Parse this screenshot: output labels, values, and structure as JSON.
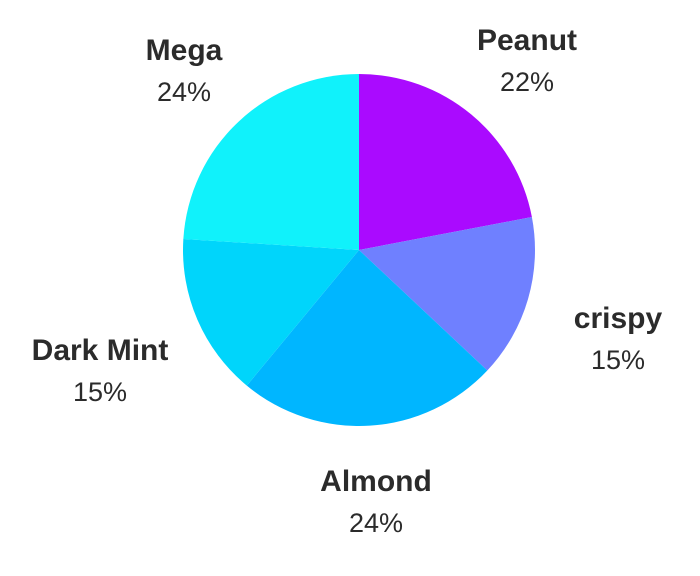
{
  "chart_data": {
    "type": "pie",
    "title": "",
    "legend": "none",
    "slices": [
      {
        "label": "Peanut",
        "value": 22,
        "display": "22%",
        "color": "#aa0aff"
      },
      {
        "label": "crispy",
        "value": 15,
        "display": "15%",
        "color": "#6f80ff"
      },
      {
        "label": "Almond",
        "value": 24,
        "display": "24%",
        "color": "#00b6ff"
      },
      {
        "label": "Dark Mint",
        "value": 15,
        "display": "15%",
        "color": "#00d5fb"
      },
      {
        "label": "Mega",
        "value": 24,
        "display": "24%",
        "color": "#10f2fb"
      }
    ]
  }
}
